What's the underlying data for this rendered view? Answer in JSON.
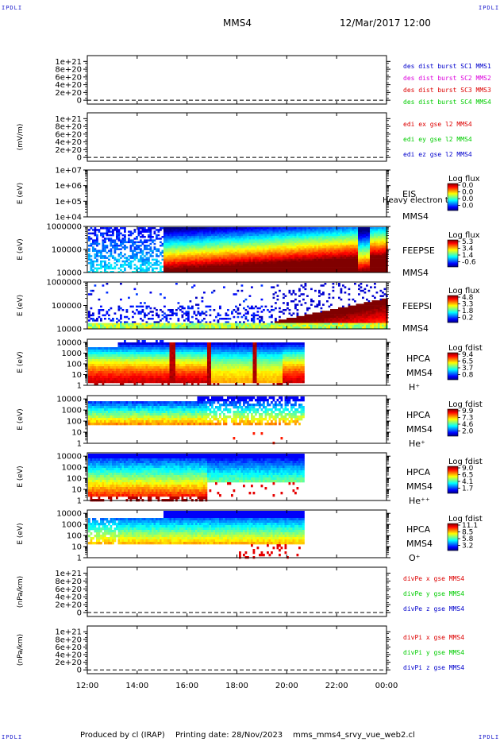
{
  "header": {
    "corner_label": "IPDLI",
    "spacecraft": "MMS4",
    "datetime": "12/Mar/2017 12:00"
  },
  "footer": {
    "produced": "Produced by cl (IRAP)",
    "printed": "Printing date: 28/Nov/2023",
    "file": "mms_mms4_srvy_vue_web2.cl"
  },
  "colors": {
    "red": "#dd0000",
    "magenta": "#dd00dd",
    "green": "#00cc00",
    "blue": "#0000cc"
  },
  "chart_data": [
    {
      "id": "des",
      "type": "line",
      "ylabel": "",
      "ticks": [
        "1e+21",
        "8e+20",
        "6e+20",
        "4e+20",
        "2e+20",
        "0"
      ],
      "yvalues": [
        1e+21,
        8e+20,
        6e+20,
        4e+20,
        2e+20,
        0
      ],
      "ylim": [
        -1e+20,
        1.15e+21
      ],
      "legend": [
        {
          "text": "des dist burst SC1 MMS1",
          "color": "#0000cc"
        },
        {
          "text": "des dist burst SC2 MMS2",
          "color": "#dd00dd"
        },
        {
          "text": "des dist burst SC3 MMS3",
          "color": "#dd0000"
        },
        {
          "text": "des dist burst SC4 MMS4",
          "color": "#00cc00"
        }
      ]
    },
    {
      "id": "edi",
      "type": "line",
      "ylabel": "(mV/m)",
      "ticks": [
        "1e+21",
        "8e+20",
        "6e+20",
        "4e+20",
        "2e+20",
        "0"
      ],
      "yvalues": [
        1e+21,
        8e+20,
        6e+20,
        4e+20,
        2e+20,
        0
      ],
      "ylim": [
        -1e+20,
        1.15e+21
      ],
      "legend": [
        {
          "text": "edi ex gse l2 MMS4",
          "color": "#dd0000"
        },
        {
          "text": "edi ey gse l2 MMS4",
          "color": "#00cc00"
        },
        {
          "text": "edi ez gse l2 MMS4",
          "color": "#0000cc"
        }
      ]
    },
    {
      "id": "eis",
      "type": "heatmap",
      "ylabel": "E (eV)",
      "ticks": [
        "1e+07",
        "1e+06",
        "1e+05",
        "1e+04"
      ],
      "log": [
        4,
        7
      ],
      "labels": [
        "EIS",
        "MMS4"
      ],
      "overlay": "Heavy electron to",
      "cb_title": "Log flux",
      "cb_ticks": [
        "0.0",
        "0.0",
        "0.0",
        "0.0"
      ],
      "fill": "none"
    },
    {
      "id": "feepse",
      "type": "heatmap",
      "ylabel": "E (eV)",
      "ticks": [
        "1000000",
        "100000",
        "10000"
      ],
      "log": [
        4,
        6
      ],
      "labels": [
        "FEEPSE",
        "MMS4"
      ],
      "cb_title": "Log flux",
      "cb_ticks": [
        "5.3",
        "3.4",
        "1.4",
        "-0.6"
      ],
      "fill": "feepse"
    },
    {
      "id": "feepsi",
      "type": "heatmap",
      "ylabel": "E (eV)",
      "ticks": [
        "1000000",
        "100000",
        "10000"
      ],
      "log": [
        4,
        6
      ],
      "labels": [
        "FEEPSI",
        "MMS4"
      ],
      "cb_title": "Log flux",
      "cb_ticks": [
        "4.8",
        "3.3",
        "1.8",
        "0.2"
      ],
      "fill": "feepsi"
    },
    {
      "id": "hpca_h",
      "type": "heatmap",
      "ylabel": "E (eV)",
      "ticks": [
        "10000",
        "1000",
        "100",
        "10",
        "1"
      ],
      "log": [
        0,
        4.3
      ],
      "labels": [
        "HPCA",
        "MMS4",
        "H⁺"
      ],
      "cb_title": "Log fdist",
      "cb_ticks": [
        "9.4",
        "6.5",
        "3.7",
        "0.8"
      ],
      "fill": "hplus"
    },
    {
      "id": "hpca_he",
      "type": "heatmap",
      "ylabel": "E (eV)",
      "ticks": [
        "10000",
        "1000",
        "100",
        "10",
        "1"
      ],
      "log": [
        0,
        4.3
      ],
      "labels": [
        "HPCA",
        "MMS4",
        "He⁺"
      ],
      "cb_title": "Log fdist",
      "cb_ticks": [
        "9.9",
        "7.3",
        "4.6",
        "2.0"
      ],
      "fill": "heplus"
    },
    {
      "id": "hpca_he2",
      "type": "heatmap",
      "ylabel": "E (eV)",
      "ticks": [
        "10000",
        "1000",
        "100",
        "10",
        "1"
      ],
      "log": [
        0,
        4.3
      ],
      "labels": [
        "HPCA",
        "MMS4",
        "He⁺⁺"
      ],
      "cb_title": "Log fdist",
      "cb_ticks": [
        "9.0",
        "6.5",
        "4.1",
        "1.7"
      ],
      "fill": "heplusplus"
    },
    {
      "id": "hpca_o",
      "type": "heatmap",
      "ylabel": "E (eV)",
      "ticks": [
        "10000",
        "1000",
        "100",
        "10",
        "1"
      ],
      "log": [
        0,
        4.3
      ],
      "labels": [
        "HPCA",
        "MMS4",
        "O⁺"
      ],
      "cb_title": "Log fdist",
      "cb_ticks": [
        "11.1",
        "8.5",
        "5.8",
        "3.2"
      ],
      "fill": "oplus"
    },
    {
      "id": "divpe",
      "type": "line",
      "ylabel": "(nPa/km)",
      "ticks": [
        "1e+21",
        "8e+20",
        "6e+20",
        "4e+20",
        "2e+20",
        "0"
      ],
      "yvalues": [
        1e+21,
        8e+20,
        6e+20,
        4e+20,
        2e+20,
        0
      ],
      "ylim": [
        -1e+20,
        1.15e+21
      ],
      "legend": [
        {
          "text": "divPe x gse MMS4",
          "color": "#dd0000"
        },
        {
          "text": "divPe y gse MMS4",
          "color": "#00cc00"
        },
        {
          "text": "divPe z gse MMS4",
          "color": "#0000cc"
        }
      ]
    },
    {
      "id": "divpi",
      "type": "line",
      "ylabel": "(nPa/km)",
      "ticks": [
        "1e+21",
        "8e+20",
        "6e+20",
        "4e+20",
        "2e+20",
        "0"
      ],
      "yvalues": [
        1e+21,
        8e+20,
        6e+20,
        4e+20,
        2e+20,
        0
      ],
      "ylim": [
        -1e+20,
        1.15e+21
      ],
      "legend": [
        {
          "text": "divPi x gse MMS4",
          "color": "#dd0000"
        },
        {
          "text": "divPi y gse MMS4",
          "color": "#00cc00"
        },
        {
          "text": "divPi z gse MMS4",
          "color": "#0000cc"
        }
      ]
    }
  ],
  "x_axis": {
    "ticks": [
      "12:00",
      "14:00",
      "16:00",
      "18:00",
      "20:00",
      "22:00",
      "00:00"
    ],
    "range_hours": [
      12,
      24
    ],
    "hpca_end_hour": 20.7
  }
}
